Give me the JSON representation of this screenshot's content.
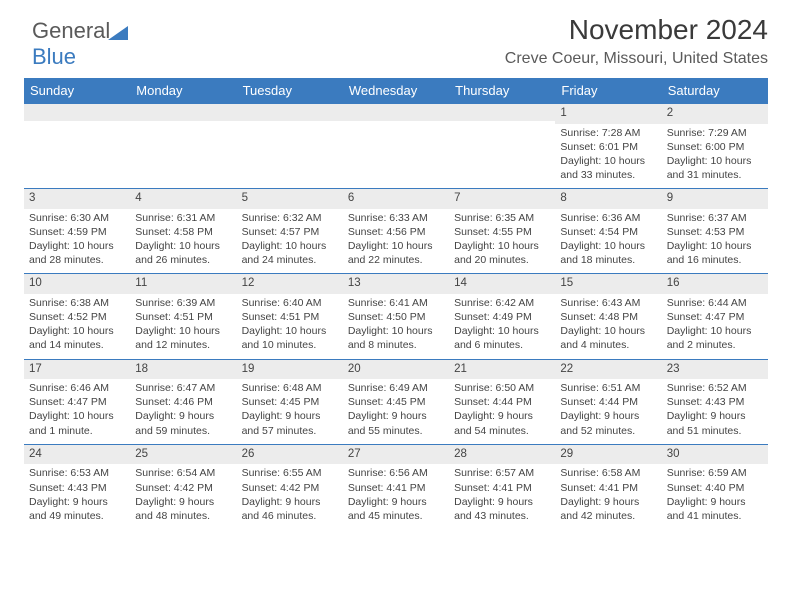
{
  "brand": {
    "line1": "General",
    "line2": "Blue"
  },
  "header": {
    "month": "November 2024",
    "location": "Creve Coeur, Missouri, United States"
  },
  "colors": {
    "accent": "#3b7bbf",
    "stripe": "#ececec",
    "text": "#3a3a3a"
  },
  "weekdays": [
    "Sunday",
    "Monday",
    "Tuesday",
    "Wednesday",
    "Thursday",
    "Friday",
    "Saturday"
  ],
  "weeks": [
    [
      null,
      null,
      null,
      null,
      null,
      {
        "d": "1",
        "sr": "7:28 AM",
        "ss": "6:01 PM",
        "dl": "10 hours and 33 minutes."
      },
      {
        "d": "2",
        "sr": "7:29 AM",
        "ss": "6:00 PM",
        "dl": "10 hours and 31 minutes."
      }
    ],
    [
      {
        "d": "3",
        "sr": "6:30 AM",
        "ss": "4:59 PM",
        "dl": "10 hours and 28 minutes."
      },
      {
        "d": "4",
        "sr": "6:31 AM",
        "ss": "4:58 PM",
        "dl": "10 hours and 26 minutes."
      },
      {
        "d": "5",
        "sr": "6:32 AM",
        "ss": "4:57 PM",
        "dl": "10 hours and 24 minutes."
      },
      {
        "d": "6",
        "sr": "6:33 AM",
        "ss": "4:56 PM",
        "dl": "10 hours and 22 minutes."
      },
      {
        "d": "7",
        "sr": "6:35 AM",
        "ss": "4:55 PM",
        "dl": "10 hours and 20 minutes."
      },
      {
        "d": "8",
        "sr": "6:36 AM",
        "ss": "4:54 PM",
        "dl": "10 hours and 18 minutes."
      },
      {
        "d": "9",
        "sr": "6:37 AM",
        "ss": "4:53 PM",
        "dl": "10 hours and 16 minutes."
      }
    ],
    [
      {
        "d": "10",
        "sr": "6:38 AM",
        "ss": "4:52 PM",
        "dl": "10 hours and 14 minutes."
      },
      {
        "d": "11",
        "sr": "6:39 AM",
        "ss": "4:51 PM",
        "dl": "10 hours and 12 minutes."
      },
      {
        "d": "12",
        "sr": "6:40 AM",
        "ss": "4:51 PM",
        "dl": "10 hours and 10 minutes."
      },
      {
        "d": "13",
        "sr": "6:41 AM",
        "ss": "4:50 PM",
        "dl": "10 hours and 8 minutes."
      },
      {
        "d": "14",
        "sr": "6:42 AM",
        "ss": "4:49 PM",
        "dl": "10 hours and 6 minutes."
      },
      {
        "d": "15",
        "sr": "6:43 AM",
        "ss": "4:48 PM",
        "dl": "10 hours and 4 minutes."
      },
      {
        "d": "16",
        "sr": "6:44 AM",
        "ss": "4:47 PM",
        "dl": "10 hours and 2 minutes."
      }
    ],
    [
      {
        "d": "17",
        "sr": "6:46 AM",
        "ss": "4:47 PM",
        "dl": "10 hours and 1 minute."
      },
      {
        "d": "18",
        "sr": "6:47 AM",
        "ss": "4:46 PM",
        "dl": "9 hours and 59 minutes."
      },
      {
        "d": "19",
        "sr": "6:48 AM",
        "ss": "4:45 PM",
        "dl": "9 hours and 57 minutes."
      },
      {
        "d": "20",
        "sr": "6:49 AM",
        "ss": "4:45 PM",
        "dl": "9 hours and 55 minutes."
      },
      {
        "d": "21",
        "sr": "6:50 AM",
        "ss": "4:44 PM",
        "dl": "9 hours and 54 minutes."
      },
      {
        "d": "22",
        "sr": "6:51 AM",
        "ss": "4:44 PM",
        "dl": "9 hours and 52 minutes."
      },
      {
        "d": "23",
        "sr": "6:52 AM",
        "ss": "4:43 PM",
        "dl": "9 hours and 51 minutes."
      }
    ],
    [
      {
        "d": "24",
        "sr": "6:53 AM",
        "ss": "4:43 PM",
        "dl": "9 hours and 49 minutes."
      },
      {
        "d": "25",
        "sr": "6:54 AM",
        "ss": "4:42 PM",
        "dl": "9 hours and 48 minutes."
      },
      {
        "d": "26",
        "sr": "6:55 AM",
        "ss": "4:42 PM",
        "dl": "9 hours and 46 minutes."
      },
      {
        "d": "27",
        "sr": "6:56 AM",
        "ss": "4:41 PM",
        "dl": "9 hours and 45 minutes."
      },
      {
        "d": "28",
        "sr": "6:57 AM",
        "ss": "4:41 PM",
        "dl": "9 hours and 43 minutes."
      },
      {
        "d": "29",
        "sr": "6:58 AM",
        "ss": "4:41 PM",
        "dl": "9 hours and 42 minutes."
      },
      {
        "d": "30",
        "sr": "6:59 AM",
        "ss": "4:40 PM",
        "dl": "9 hours and 41 minutes."
      }
    ]
  ],
  "labels": {
    "sunrise": "Sunrise:",
    "sunset": "Sunset:",
    "daylight": "Daylight:"
  }
}
